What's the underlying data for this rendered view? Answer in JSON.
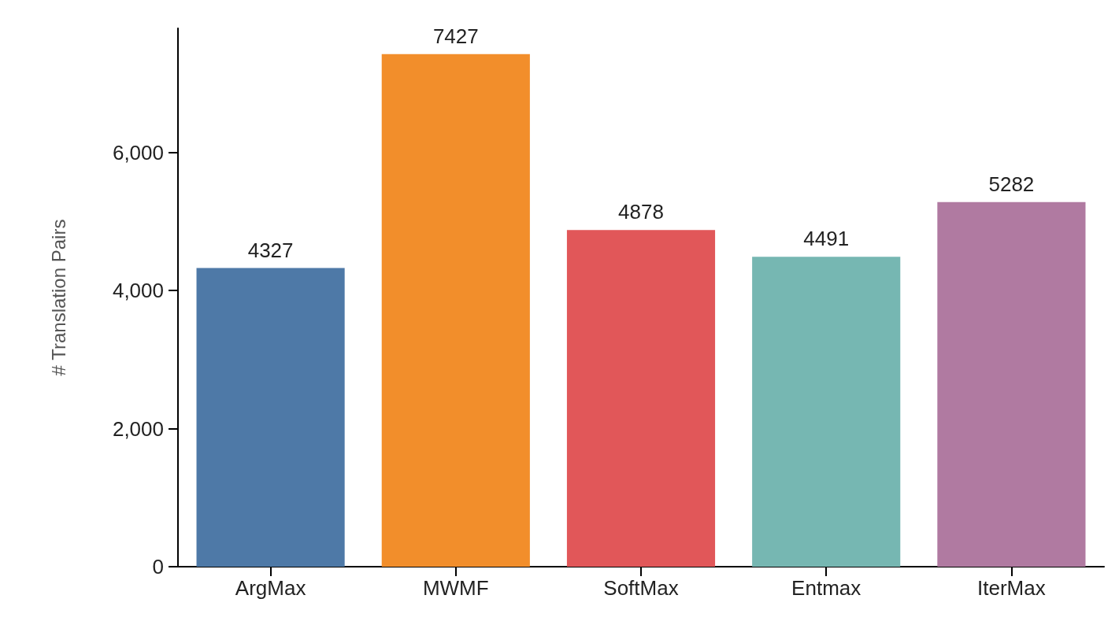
{
  "chart_data": {
    "type": "bar",
    "ylabel": "# Translation Pairs",
    "categories": [
      "ArgMax",
      "MWMF",
      "SoftMax",
      "Entmax",
      "IterMax"
    ],
    "values": [
      4327,
      7427,
      4878,
      4491,
      5282
    ],
    "colors": [
      "#4e79a7",
      "#f28e2b",
      "#e15759",
      "#76b7b2",
      "#b07aa1"
    ],
    "ylim": [
      0,
      7800
    ],
    "yticks": [
      0,
      {
        "value": 2000,
        "label": "2,000"
      },
      {
        "value": 4000,
        "label": "4,000"
      },
      {
        "value": 6000,
        "label": "6,000"
      }
    ],
    "grid": false,
    "data_labels": true
  }
}
